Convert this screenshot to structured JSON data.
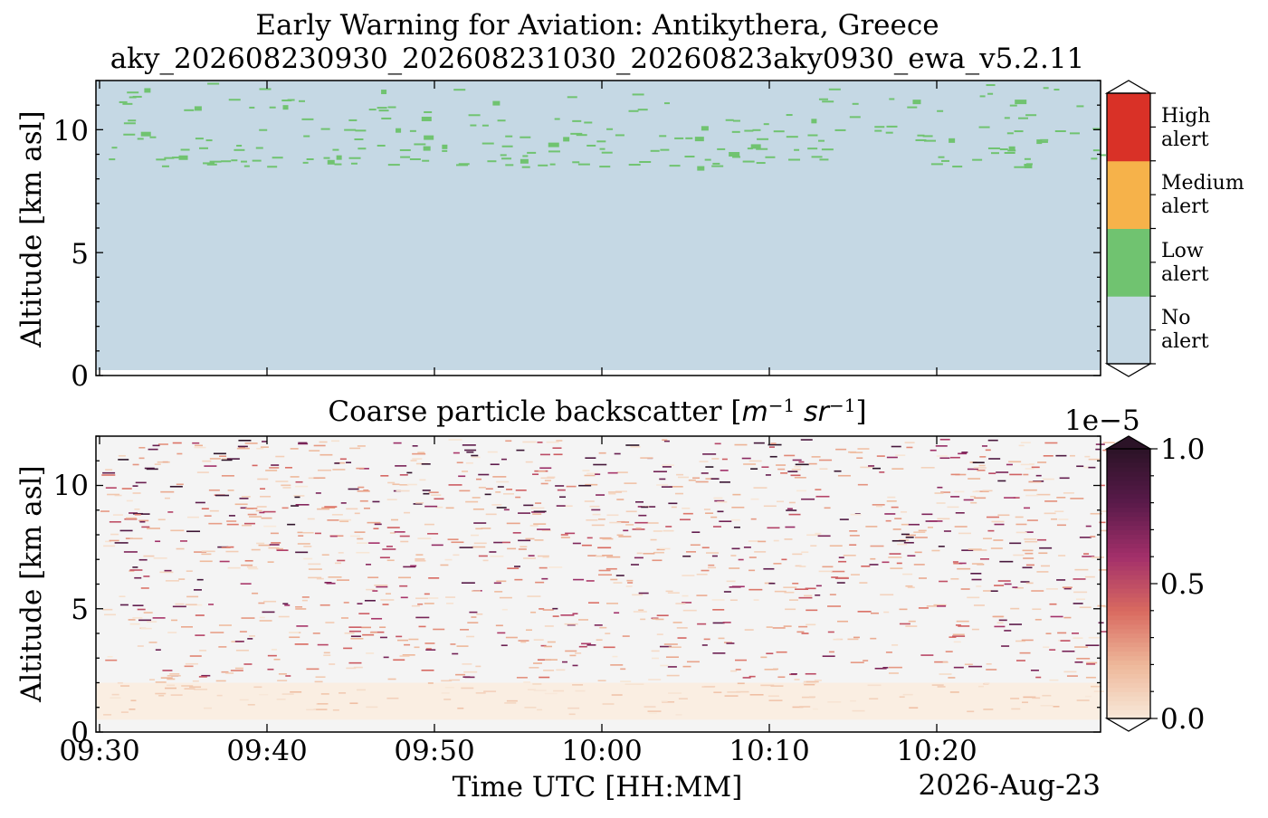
{
  "figure": {
    "title_line1": "Early Warning for Aviation: Antikythera, Greece",
    "title_line2": "aky_202608230930_202608231030_20260823aky0930_ewa_v5.2.11",
    "xlabel": "Time UTC [HH:MM]",
    "date_label": "2026-Aug-23"
  },
  "chart_data": [
    {
      "type": "heatmap",
      "panel": "alert",
      "title": "",
      "ylabel": "Altitude [km asl]",
      "ylim": [
        0,
        12
      ],
      "yticks": [
        0,
        5,
        10
      ],
      "yticks_display": [
        "0",
        "5",
        "10"
      ],
      "xlim_minutes_after_0930": [
        0,
        60
      ],
      "xtick_labels": [
        "09:30",
        "09:40",
        "09:50",
        "10:00",
        "10:10",
        "10:20"
      ],
      "background_category": "No alert",
      "sparse_category": "Low alert",
      "sparse_altitude_range_km": [
        8.5,
        12
      ],
      "colorbar": {
        "categories": [
          "No alert",
          "Low alert",
          "Medium alert",
          "High alert"
        ],
        "labels": [
          [
            "No",
            "alert"
          ],
          [
            "Low",
            "alert"
          ],
          [
            "Medium",
            "alert"
          ],
          [
            "High",
            "alert"
          ]
        ],
        "colors": [
          "#c5d8e4",
          "#70c370",
          "#f6b24a",
          "#d93127"
        ]
      }
    },
    {
      "type": "heatmap",
      "panel": "backscatter",
      "title": "Coarse particle backscatter",
      "title_unit_prefix": "[",
      "title_unit_m": "m",
      "title_unit_sr": "sr",
      "title_unit_exp": "−1",
      "title_unit_suffix": "]",
      "ylabel": "Altitude [km asl]",
      "ylim": [
        0,
        12
      ],
      "yticks": [
        0,
        5,
        10
      ],
      "yticks_display": [
        "0",
        "5",
        "10"
      ],
      "xlim_minutes_after_0930": [
        0,
        60
      ],
      "xtick_labels": [
        "09:30",
        "09:40",
        "09:50",
        "10:00",
        "10:10",
        "10:20"
      ],
      "colorbar": {
        "vmin": 0.0,
        "vmax": 1.0,
        "scale_label": "1e−5",
        "tick_labels": [
          "0.0",
          "0.5",
          "1.0"
        ],
        "colors": [
          "#f8e9da",
          "#eeb89a",
          "#d96a60",
          "#a3306a",
          "#5a1a4a",
          "#2b1327"
        ]
      }
    }
  ]
}
